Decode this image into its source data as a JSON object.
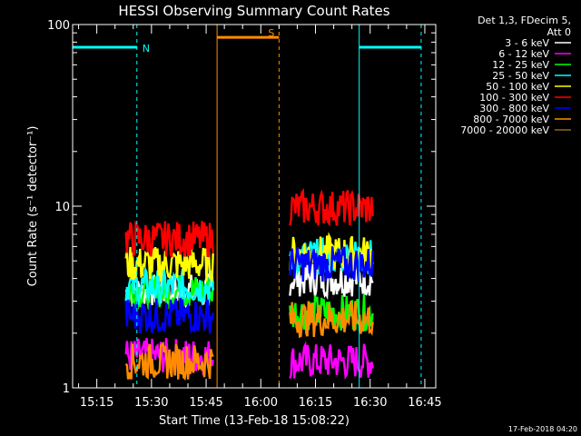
{
  "chart_data": {
    "type": "line",
    "title": "HESSI Observing Summary Count Rates",
    "xlabel": "Start Time (13-Feb-18 15:08:22)",
    "ylabel": "Count Rate (s⁻¹ detector⁻¹)",
    "yscale": "log",
    "ylim": [
      1,
      100
    ],
    "xlim": [
      "15:08:22",
      "16:48:00"
    ],
    "y_ticks": [
      "1",
      "10",
      "100"
    ],
    "x_ticks": [
      "15:15",
      "15:30",
      "15:45",
      "16:00",
      "16:15",
      "16:30",
      "16:45"
    ],
    "legend_header": [
      "Det 1,3, FDecim 5,",
      "Att 0"
    ],
    "legend_position": "right",
    "series": [
      {
        "name": "3 - 6 keV",
        "color": "#ffffff",
        "segments": [
          {
            "x": [
              "15:23",
              "15:47"
            ],
            "mean": 3.4
          },
          {
            "x": [
              "16:08",
              "16:31"
            ],
            "mean": 4.0
          }
        ]
      },
      {
        "name": "6 - 12 keV",
        "color": "#ff00ff",
        "segments": [
          {
            "x": [
              "15:23",
              "15:47"
            ],
            "mean": 1.5
          },
          {
            "x": [
              "16:08",
              "16:31"
            ],
            "mean": 1.4
          }
        ]
      },
      {
        "name": "12 - 25 keV",
        "color": "#00ff00",
        "segments": [
          {
            "x": [
              "15:23",
              "15:47"
            ],
            "mean": 3.4
          },
          {
            "x": [
              "16:08",
              "16:31"
            ],
            "mean": 2.6
          }
        ]
      },
      {
        "name": "25 - 50 keV",
        "color": "#00ffff",
        "segments": [
          {
            "x": [
              "15:23",
              "15:47"
            ],
            "mean": 3.6
          },
          {
            "x": [
              "16:08",
              "16:31"
            ],
            "mean": 5.3
          }
        ]
      },
      {
        "name": "50 - 100 keV",
        "color": "#ffff00",
        "segments": [
          {
            "x": [
              "15:23",
              "15:47"
            ],
            "mean": 4.8
          },
          {
            "x": [
              "16:08",
              "16:31"
            ],
            "mean": 5.5
          }
        ]
      },
      {
        "name": "100 - 300 keV",
        "color": "#ff0000",
        "segments": [
          {
            "x": [
              "15:23",
              "15:47"
            ],
            "mean": 6.6
          },
          {
            "x": [
              "16:08",
              "16:31"
            ],
            "mean": 9.8
          }
        ]
      },
      {
        "name": "300 - 800 keV",
        "color": "#0000ff",
        "segments": [
          {
            "x": [
              "15:23",
              "15:47"
            ],
            "mean": 2.5
          },
          {
            "x": [
              "16:08",
              "16:31"
            ],
            "mean": 4.8
          }
        ]
      },
      {
        "name": "800 - 7000 keV",
        "color": "#ff8c00",
        "segments": [
          {
            "x": [
              "15:23",
              "15:47"
            ],
            "mean": 1.4
          },
          {
            "x": [
              "16:08",
              "16:31"
            ],
            "mean": 2.4
          }
        ]
      },
      {
        "name": "7000 - 20000 keV",
        "color": "#8b6914",
        "segments": []
      }
    ],
    "flag_bars": [
      {
        "label": "N",
        "color": "#00ffff",
        "y": 75,
        "segments": [
          [
            "15:08:22",
            "15:26"
          ],
          [
            "16:27",
            "16:44"
          ]
        ]
      },
      {
        "label": "S",
        "color": "#ff8c00",
        "y": 85,
        "segments": [
          [
            "15:48",
            "16:05"
          ]
        ]
      }
    ],
    "vertical_lines": [
      {
        "x": "15:08:22",
        "color": "#00ffff",
        "style": "solid"
      },
      {
        "x": "15:26",
        "color": "#00ffff",
        "style": "dashed"
      },
      {
        "x": "15:48",
        "color": "#ff8c00",
        "style": "solid"
      },
      {
        "x": "16:05",
        "color": "#ff8c00",
        "style": "dashed"
      },
      {
        "x": "16:27",
        "color": "#00ffff",
        "style": "solid"
      },
      {
        "x": "16:44",
        "color": "#00ffff",
        "style": "dashed"
      }
    ],
    "footer": "17-Feb-2018 04:20"
  }
}
